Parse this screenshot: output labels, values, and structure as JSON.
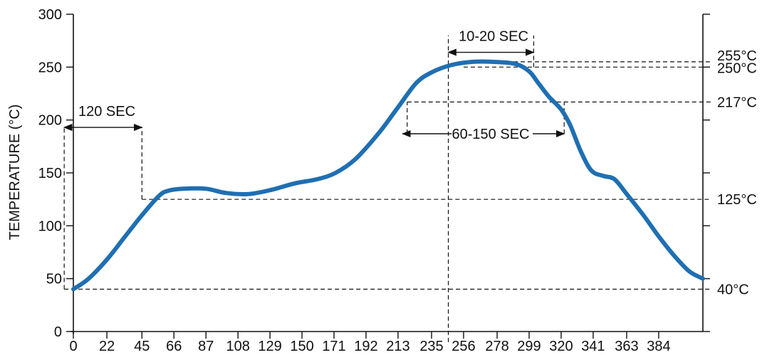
{
  "chart_data": {
    "type": "line",
    "title": "",
    "xlabel": "",
    "ylabel": "TEMPERATURE (°C)",
    "xlim": [
      0,
      413
    ],
    "ylim": [
      0,
      300
    ],
    "x_ticks": [
      0,
      22,
      45,
      66,
      87,
      108,
      129,
      150,
      171,
      192,
      213,
      235,
      256,
      278,
      299,
      320,
      341,
      363,
      384
    ],
    "y_ticks": [
      0,
      50,
      100,
      150,
      200,
      250,
      300
    ],
    "series": [
      {
        "color": "#1f6fb2",
        "x": [
          0,
          10,
          22,
          34,
          45,
          56,
          62,
          72,
          87,
          100,
          115,
          130,
          145,
          160,
          172,
          185,
          200,
          213,
          225,
          235,
          248,
          262,
          275,
          290,
          299,
          305,
          312,
          320,
          326,
          333,
          340,
          348,
          355,
          363,
          374,
          384,
          394,
          404,
          413
        ],
        "y": [
          40,
          50,
          68,
          90,
          110,
          128,
          133,
          135,
          135,
          131,
          130,
          134,
          140,
          144,
          150,
          163,
          187,
          212,
          235,
          245,
          252,
          255,
          255,
          253,
          246,
          235,
          222,
          210,
          195,
          170,
          152,
          147,
          144,
          130,
          110,
          90,
          72,
          57,
          50
        ]
      }
    ],
    "reference_lines": {
      "labels": [
        "255°C",
        "250°C",
        "217°C",
        "125°C",
        "40°C"
      ],
      "values": [
        255,
        250,
        217,
        125,
        40
      ]
    },
    "annotations": [
      {
        "text": "120 SEC",
        "x_from": -6,
        "x_to": 45,
        "y": 193
      },
      {
        "text": "10-20 SEC",
        "x_from": 246,
        "x_to": 302,
        "y": 264
      },
      {
        "text": "60-150 SEC",
        "x_from": 216,
        "x_to": 322,
        "y": 187
      }
    ],
    "grid": false
  }
}
